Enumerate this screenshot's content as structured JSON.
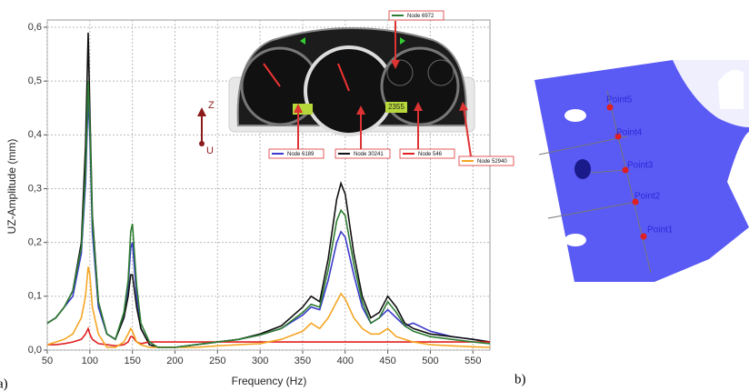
{
  "chart_data": {
    "type": "line",
    "x_label": "Frequency (Hz)",
    "y_label": "UZ-Amplitude (mm)",
    "x": [
      50,
      60,
      70,
      80,
      90,
      95,
      98,
      100,
      103,
      110,
      120,
      130,
      140,
      145,
      148,
      150,
      155,
      160,
      170,
      180,
      200,
      225,
      250,
      275,
      300,
      325,
      350,
      360,
      370,
      380,
      390,
      395,
      400,
      410,
      420,
      430,
      440,
      450,
      460,
      470,
      480,
      500,
      525,
      550,
      570
    ],
    "series": [
      {
        "name": "Node 6189",
        "color": "#3a3acc",
        "values": [
          0.05,
          0.06,
          0.08,
          0.1,
          0.18,
          0.31,
          0.47,
          0.4,
          0.22,
          0.08,
          0.03,
          0.02,
          0.06,
          0.12,
          0.19,
          0.2,
          0.1,
          0.04,
          0.01,
          0.005,
          0.005,
          0.01,
          0.015,
          0.02,
          0.028,
          0.04,
          0.065,
          0.08,
          0.075,
          0.13,
          0.2,
          0.22,
          0.21,
          0.14,
          0.08,
          0.05,
          0.06,
          0.075,
          0.06,
          0.045,
          0.05,
          0.035,
          0.025,
          0.02,
          0.015
        ]
      },
      {
        "name": "Node 30241",
        "color": "#111111",
        "values": [
          0.05,
          0.06,
          0.08,
          0.11,
          0.2,
          0.38,
          0.59,
          0.45,
          0.25,
          0.09,
          0.03,
          0.02,
          0.06,
          0.1,
          0.14,
          0.14,
          0.08,
          0.04,
          0.01,
          0.005,
          0.005,
          0.01,
          0.015,
          0.02,
          0.03,
          0.045,
          0.08,
          0.1,
          0.09,
          0.17,
          0.28,
          0.31,
          0.29,
          0.18,
          0.1,
          0.06,
          0.07,
          0.1,
          0.08,
          0.05,
          0.04,
          0.03,
          0.025,
          0.02,
          0.015
        ]
      },
      {
        "name": "Node 546",
        "color": "#e02020",
        "values": [
          0.01,
          0.01,
          0.012,
          0.015,
          0.02,
          0.03,
          0.04,
          0.03,
          0.02,
          0.012,
          0.01,
          0.008,
          0.01,
          0.015,
          0.025,
          0.025,
          0.015,
          0.012,
          0.015,
          0.015,
          0.015,
          0.015,
          0.015,
          0.015,
          0.015,
          0.015,
          0.015,
          0.015,
          0.015,
          0.015,
          0.015,
          0.015,
          0.015,
          0.015,
          0.015,
          0.015,
          0.015,
          0.015,
          0.015,
          0.015,
          0.015,
          0.015,
          0.015,
          0.015,
          0.015
        ]
      },
      {
        "name": "Node 52940",
        "color": "#f5a623",
        "values": [
          0.01,
          0.015,
          0.02,
          0.03,
          0.06,
          0.1,
          0.155,
          0.14,
          0.08,
          0.03,
          0.005,
          0.005,
          0.015,
          0.03,
          0.04,
          0.035,
          0.015,
          0.01,
          0.005,
          0.005,
          0.005,
          0.005,
          0.008,
          0.01,
          0.012,
          0.02,
          0.035,
          0.05,
          0.04,
          0.06,
          0.09,
          0.105,
          0.095,
          0.06,
          0.04,
          0.03,
          0.03,
          0.04,
          0.025,
          0.02,
          0.015,
          0.01,
          0.008,
          0.006,
          0.005
        ]
      },
      {
        "name": "Node 6972",
        "color": "#2e7d32",
        "values": [
          0.05,
          0.06,
          0.08,
          0.11,
          0.19,
          0.33,
          0.5,
          0.42,
          0.24,
          0.09,
          0.03,
          0.02,
          0.07,
          0.13,
          0.22,
          0.235,
          0.12,
          0.05,
          0.015,
          0.005,
          0.005,
          0.01,
          0.015,
          0.02,
          0.028,
          0.04,
          0.07,
          0.085,
          0.08,
          0.15,
          0.24,
          0.26,
          0.25,
          0.16,
          0.09,
          0.05,
          0.06,
          0.09,
          0.07,
          0.045,
          0.035,
          0.025,
          0.02,
          0.015,
          0.012
        ]
      }
    ],
    "xlim": [
      50,
      570
    ],
    "ylim": [
      0,
      0.6
    ],
    "xticks": [
      50,
      100,
      150,
      200,
      250,
      300,
      350,
      400,
      450,
      500,
      550
    ],
    "yticks": [
      {
        "value": 0,
        "label": "0,0"
      },
      {
        "value": 0.1,
        "label": "0,1"
      },
      {
        "value": 0.2,
        "label": "0,2"
      },
      {
        "value": 0.3,
        "label": "0,3"
      },
      {
        "value": 0.4,
        "label": "0,4"
      },
      {
        "value": 0.5,
        "label": "0,5"
      },
      {
        "value": 0.6,
        "label": "0,6"
      }
    ],
    "grid": true
  },
  "figure": {
    "panel_labels": [
      "a)",
      "b)"
    ],
    "direction": [
      "Z",
      "U"
    ],
    "display": "2355",
    "points": [
      "Point1",
      "Point2",
      "Point3",
      "Point4",
      "Point5"
    ]
  }
}
